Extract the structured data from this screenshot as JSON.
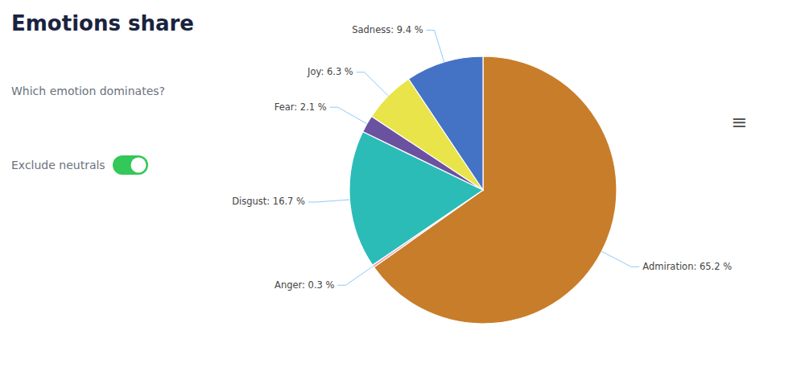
{
  "chart_data": {
    "type": "pie",
    "title": "Emotions share",
    "subtitle": "Which emotion dominates?",
    "annotations": [
      "Exclude neutrals",
      "≡"
    ],
    "values": [
      65.2,
      0.3,
      16.7,
      2.1,
      6.3,
      9.4
    ],
    "value_labels": [
      "Admiration: 65.2 %",
      "Anger: 0.3 %",
      "Disgust: 16.7 %",
      "Fear: 2.1 %",
      "Joy: 6.3 %",
      "Sadness: 9.4 %"
    ],
    "colors": [
      "#C87D2A",
      "#F4A0B0",
      "#2BBCB8",
      "#6B52A1",
      "#E8E44A",
      "#4472C4"
    ],
    "data_labels": true
  }
}
